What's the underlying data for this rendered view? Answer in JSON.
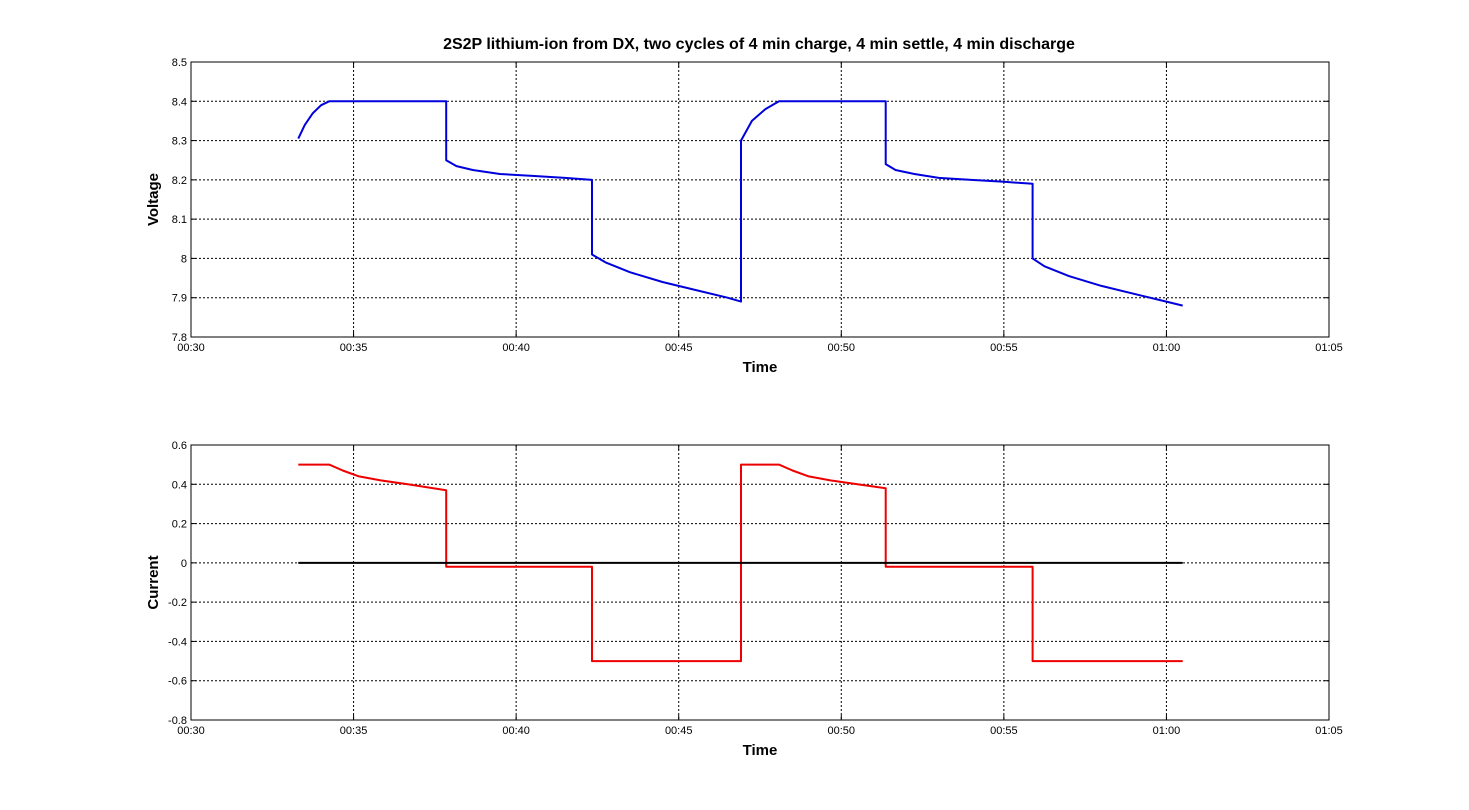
{
  "chart_data": [
    {
      "type": "line",
      "title": "2S2P lithium-ion from DX, two cycles of 4 min charge, 4 min settle, 4 min discharge",
      "xlabel": "Time",
      "ylabel": "Voltage",
      "xlim": [
        "00:30",
        "01:05"
      ],
      "ylim": [
        7.8,
        8.5
      ],
      "grid": true,
      "x_ticks": [
        "00:30",
        "00:35",
        "00:40",
        "00:45",
        "00:50",
        "00:55",
        "01:00",
        "01:05"
      ],
      "y_ticks": [
        "7.8",
        "7.9",
        "8",
        "8.1",
        "8.2",
        "8.3",
        "8.4",
        "8.5"
      ],
      "series": [
        {
          "color": "#0000dd",
          "points": [
            [
              "00:33:18",
              8.305
            ],
            [
              "00:33:30",
              8.34
            ],
            [
              "00:33:45",
              8.37
            ],
            [
              "00:34:00",
              8.39
            ],
            [
              "00:34:15",
              8.4
            ],
            [
              "00:37:51",
              8.4
            ],
            [
              "00:37:51",
              8.25
            ],
            [
              "00:38:10",
              8.235
            ],
            [
              "00:38:40",
              8.225
            ],
            [
              "00:39:30",
              8.215
            ],
            [
              "00:40:30",
              8.21
            ],
            [
              "00:41:30",
              8.205
            ],
            [
              "00:42:20",
              8.2
            ],
            [
              "00:42:20",
              8.01
            ],
            [
              "00:42:45",
              7.99
            ],
            [
              "00:43:30",
              7.965
            ],
            [
              "00:44:30",
              7.94
            ],
            [
              "00:45:30",
              7.92
            ],
            [
              "00:46:30",
              7.9
            ],
            [
              "00:46:55",
              7.89
            ],
            [
              "00:46:55",
              8.3
            ],
            [
              "00:47:15",
              8.35
            ],
            [
              "00:47:40",
              8.38
            ],
            [
              "00:48:05",
              8.4
            ],
            [
              "00:51:22",
              8.4
            ],
            [
              "00:51:22",
              8.24
            ],
            [
              "00:51:40",
              8.225
            ],
            [
              "00:52:15",
              8.215
            ],
            [
              "00:53:00",
              8.205
            ],
            [
              "00:54:00",
              8.2
            ],
            [
              "00:55:00",
              8.195
            ],
            [
              "00:55:53",
              8.19
            ],
            [
              "00:55:53",
              8.0
            ],
            [
              "00:56:15",
              7.98
            ],
            [
              "00:57:00",
              7.955
            ],
            [
              "00:58:00",
              7.93
            ],
            [
              "00:59:00",
              7.91
            ],
            [
              "01:00:00",
              7.89
            ],
            [
              "01:00:30",
              7.88
            ]
          ]
        }
      ]
    },
    {
      "type": "line",
      "xlabel": "Time",
      "ylabel": "Current",
      "xlim": [
        "00:30",
        "01:05"
      ],
      "ylim": [
        -0.8,
        0.6
      ],
      "grid": true,
      "x_ticks": [
        "00:30",
        "00:35",
        "00:40",
        "00:45",
        "00:50",
        "00:55",
        "01:00",
        "01:05"
      ],
      "y_ticks": [
        "-0.8",
        "-0.6",
        "-0.4",
        "-0.2",
        "0",
        "0.2",
        "0.4",
        "0.6"
      ],
      "series": [
        {
          "color": "#ee0000",
          "points": [
            [
              "00:33:18",
              0.5
            ],
            [
              "00:34:15",
              0.5
            ],
            [
              "00:34:40",
              0.47
            ],
            [
              "00:35:10",
              0.44
            ],
            [
              "00:35:50",
              0.42
            ],
            [
              "00:36:40",
              0.4
            ],
            [
              "00:37:51",
              0.37
            ],
            [
              "00:37:51",
              -0.02
            ],
            [
              "00:42:20",
              -0.02
            ],
            [
              "00:42:20",
              -0.5
            ],
            [
              "00:46:55",
              -0.5
            ],
            [
              "00:46:55",
              0.5
            ],
            [
              "00:48:05",
              0.5
            ],
            [
              "00:48:30",
              0.47
            ],
            [
              "00:49:00",
              0.44
            ],
            [
              "00:49:40",
              0.42
            ],
            [
              "00:50:30",
              0.4
            ],
            [
              "00:51:22",
              0.38
            ],
            [
              "00:51:22",
              -0.02
            ],
            [
              "00:55:53",
              -0.02
            ],
            [
              "00:55:53",
              -0.5
            ],
            [
              "01:00:30",
              -0.5
            ]
          ]
        },
        {
          "color": "#000000",
          "points": [
            [
              "00:33:18",
              0
            ],
            [
              "01:00:30",
              0
            ]
          ]
        }
      ]
    }
  ]
}
